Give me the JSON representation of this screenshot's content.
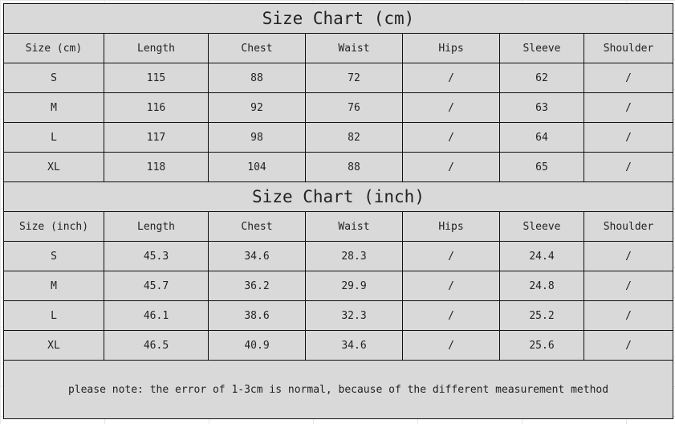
{
  "tables": [
    {
      "title": "Size Chart (cm)",
      "headers": [
        "Size (cm)",
        "Length",
        "Chest",
        "Waist",
        "Hips",
        "Sleeve",
        "Shoulder"
      ],
      "rows": [
        [
          "S",
          "115",
          "88",
          "72",
          "/",
          "62",
          "/"
        ],
        [
          "M",
          "116",
          "92",
          "76",
          "/",
          "63",
          "/"
        ],
        [
          "L",
          "117",
          "98",
          "82",
          "/",
          "64",
          "/"
        ],
        [
          "XL",
          "118",
          "104",
          "88",
          "/",
          "65",
          "/"
        ]
      ]
    },
    {
      "title": "Size Chart (inch)",
      "headers": [
        "Size (inch)",
        "Length",
        "Chest",
        "Waist",
        "Hips",
        "Sleeve",
        "Shoulder"
      ],
      "rows": [
        [
          "S",
          "45.3",
          "34.6",
          "28.3",
          "/",
          "24.4",
          "/"
        ],
        [
          "M",
          "45.7",
          "36.2",
          "29.9",
          "/",
          "24.8",
          "/"
        ],
        [
          "L",
          "46.1",
          "38.6",
          "32.3",
          "/",
          "25.2",
          "/"
        ],
        [
          "XL",
          "46.5",
          "40.9",
          "34.6",
          "/",
          "25.6",
          "/"
        ]
      ]
    }
  ],
  "note": "please note: the error of 1-3cm is normal, because of the different measurement method"
}
